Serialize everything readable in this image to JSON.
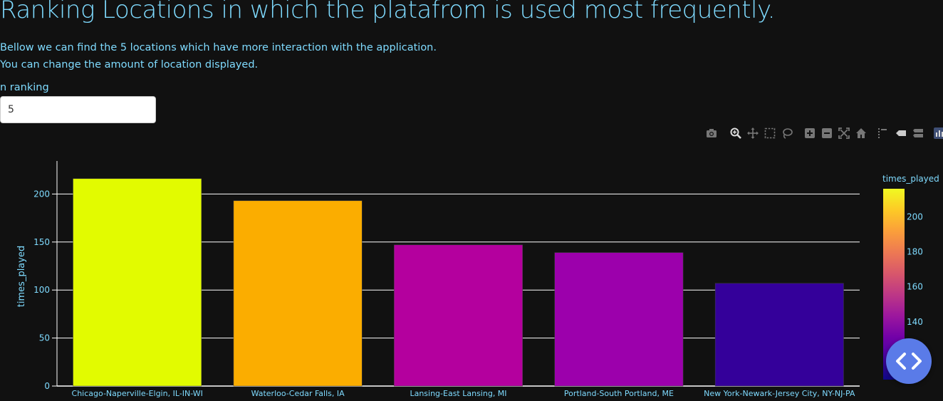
{
  "page": {
    "title": "Ranking Locations in which the platafrom is used most frequently.",
    "description_1": "Bellow we can find the 5 locations which have more interaction with the application.",
    "description_2": "You can change the amount of location displayed.",
    "input_label": "n ranking",
    "input_value": "5"
  },
  "modebar": {
    "icons": [
      "camera-icon",
      "zoom-icon",
      "pan-icon",
      "box-select-icon",
      "lasso-select-icon",
      "zoom-in-icon",
      "zoom-out-icon",
      "autoscale-icon",
      "reset-axes-icon",
      "spike-lines-icon",
      "hover-closest-icon",
      "hover-compare-icon",
      "plotly-logo-icon"
    ]
  },
  "chart_data": {
    "type": "bar",
    "categories": [
      "Chicago-Naperville-Elgin, IL-IN-WI",
      "Waterloo-Cedar Falls, IA",
      "Lansing-East Lansing, MI",
      "Portland-South Portland, ME",
      "New York-Newark-Jersey City, NY-NJ-PA"
    ],
    "values": [
      216,
      193,
      147,
      139,
      107
    ],
    "colors": [
      "#e2fb00",
      "#fbad00",
      "#b4009e",
      "#9c00ac",
      "#34009a"
    ],
    "xlabel": "",
    "ylabel": "times_played",
    "ylim": [
      0,
      227
    ],
    "yticks": [
      0,
      50,
      100,
      150,
      200
    ],
    "grid": true,
    "colorbar": {
      "title": "times_played",
      "range": [
        107,
        216
      ],
      "ticks": [
        140,
        160,
        180,
        200
      ],
      "colorscale": [
        "#0d0887",
        "#46039f",
        "#7201a8",
        "#9c179e",
        "#bd3786",
        "#d8576b",
        "#ed7953",
        "#fb9f3a",
        "#fdca26",
        "#f0f921"
      ]
    }
  },
  "fab": {
    "icon": "code-brackets-icon"
  }
}
